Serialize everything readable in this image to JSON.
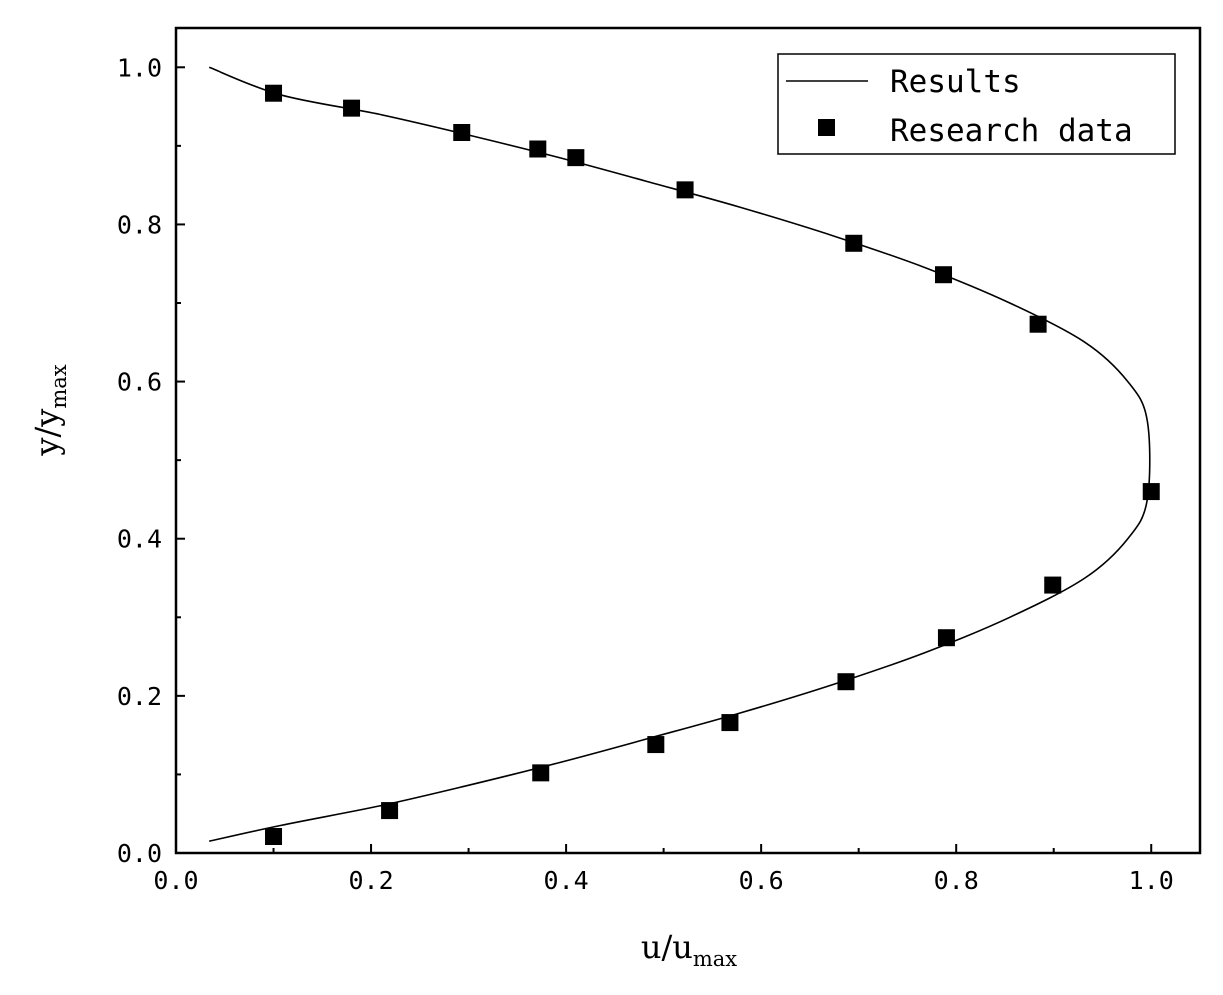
{
  "chart_data": {
    "type": "scatter",
    "title": "",
    "xlabel": {
      "main": "u/u",
      "sub": "max"
    },
    "ylabel": {
      "main": "y/y",
      "sub": "max"
    },
    "xlim": [
      0.0,
      1.05
    ],
    "ylim": [
      0.0,
      1.05
    ],
    "xticks": [
      "0.0",
      "0.2",
      "0.4",
      "0.6",
      "0.8",
      "1.0"
    ],
    "yticks": [
      "0.0",
      "0.2",
      "0.4",
      "0.6",
      "0.8",
      "1.0"
    ],
    "grid": false,
    "legend_position": "top-right",
    "series": [
      {
        "name": "Results",
        "style": "line",
        "color": "#000000",
        "x": [
          0.034,
          0.107,
          0.209,
          0.296,
          0.393,
          0.491,
          0.578,
          0.675,
          0.768,
          0.855,
          0.932,
          0.976,
          0.996,
          0.996,
          0.976,
          0.932,
          0.855,
          0.768,
          0.675,
          0.578,
          0.491,
          0.393,
          0.296,
          0.209,
          0.107,
          0.034
        ],
        "y": [
          0.015,
          0.035,
          0.06,
          0.085,
          0.115,
          0.148,
          0.178,
          0.215,
          0.255,
          0.3,
          0.35,
          0.4,
          0.45,
          0.55,
          0.6,
          0.65,
          0.7,
          0.745,
          0.785,
          0.822,
          0.852,
          0.885,
          0.915,
          0.94,
          0.965,
          1.0
        ]
      },
      {
        "name": "Research data",
        "style": "marker-square",
        "color": "#000000",
        "x": [
          0.1,
          0.18,
          0.293,
          0.371,
          0.41,
          0.522,
          0.695,
          0.787,
          0.884,
          1.0,
          0.899,
          0.79,
          0.687,
          0.568,
          0.492,
          0.374,
          0.219,
          0.1
        ],
        "y": [
          0.967,
          0.948,
          0.917,
          0.896,
          0.885,
          0.844,
          0.776,
          0.736,
          0.673,
          0.46,
          0.341,
          0.274,
          0.218,
          0.166,
          0.138,
          0.102,
          0.054,
          0.021
        ]
      }
    ]
  }
}
